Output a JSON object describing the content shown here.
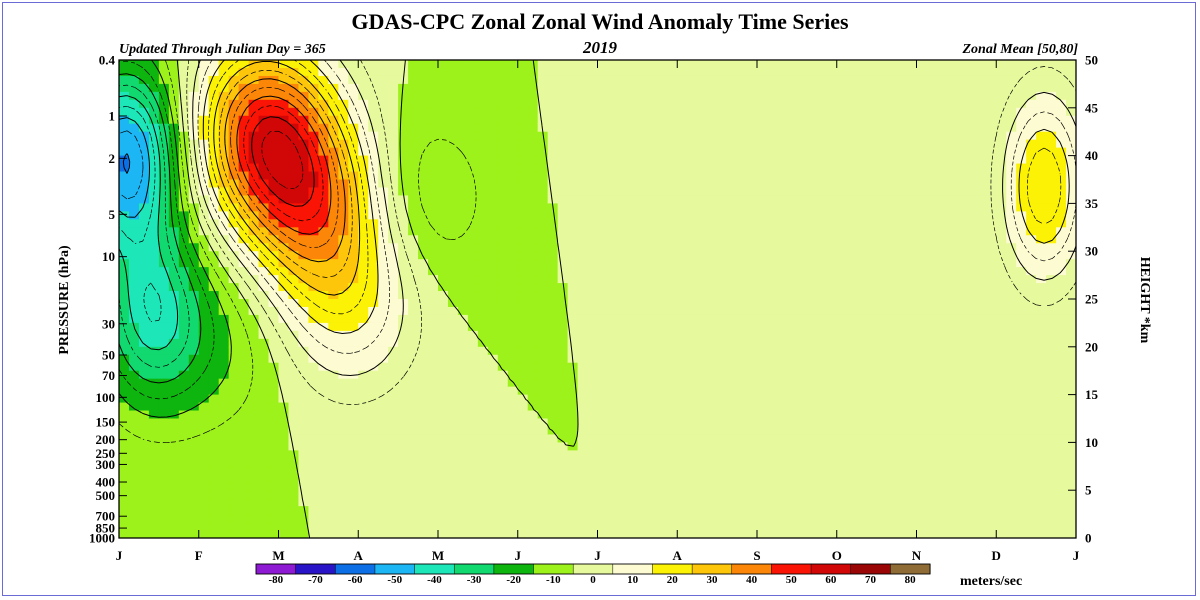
{
  "chart_data": {
    "type": "heatmap",
    "title": "GDAS-CPC Zonal Zonal Wind Anomaly Time Series",
    "subtitle_left": "Updated Through Julian Day = 365",
    "subtitle_center": "2019",
    "subtitle_right": "Zonal Mean [50,80]",
    "ylabel": "PRESSURE (hPa)",
    "y2label": "HEIGHT *km",
    "units": "meters/sec",
    "x_ticks": [
      "J",
      "F",
      "M",
      "A",
      "M",
      "J",
      "J",
      "A",
      "S",
      "O",
      "N",
      "D",
      "J"
    ],
    "pressure_ticks": [
      "0.4",
      "1",
      "2",
      "5",
      "10",
      "30",
      "50",
      "70",
      "100",
      "150",
      "200",
      "250",
      "300",
      "400",
      "500",
      "700",
      "850",
      "1000"
    ],
    "height_ticks": [
      "0",
      "5",
      "10",
      "15",
      "20",
      "25",
      "30",
      "35",
      "40",
      "45",
      "50"
    ],
    "colorbar": {
      "levels": [
        "-80",
        "-70",
        "-60",
        "-50",
        "-40",
        "-30",
        "-20",
        "-10",
        "0",
        "10",
        "20",
        "30",
        "40",
        "50",
        "60",
        "70",
        "80"
      ],
      "colors": [
        "#8e1bd3",
        "#2a14c8",
        "#0c6fe6",
        "#1cb6f5",
        "#1de7b8",
        "#11d96f",
        "#0eb50f",
        "#9df21b",
        "#e6f99c",
        "#fdfbd2",
        "#fbf206",
        "#fdc60b",
        "#fb8608",
        "#fa1405",
        "#d10707",
        "#9a0505",
        "#8f6b35"
      ]
    },
    "zlim": [
      -80,
      80
    ],
    "features": [
      {
        "month": 0.1,
        "log10_p": 0.3,
        "value": -50
      },
      {
        "month": 0.4,
        "log10_p": 1.4,
        "value": -30
      },
      {
        "month": 1.2,
        "log10_p": 1.6,
        "value": -10
      },
      {
        "month": 1.8,
        "log10_p": 0.1,
        "value": 50
      },
      {
        "month": 2.4,
        "log10_p": 0.6,
        "value": 40
      },
      {
        "month": 2.9,
        "log10_p": 1.3,
        "value": 20
      },
      {
        "month": 3.8,
        "log10_p": 0.6,
        "value": -10
      },
      {
        "month": 6.8,
        "log10_p": 0.2,
        "value": 5
      },
      {
        "month": 11.6,
        "log10_p": 0.5,
        "value": 30
      }
    ]
  }
}
